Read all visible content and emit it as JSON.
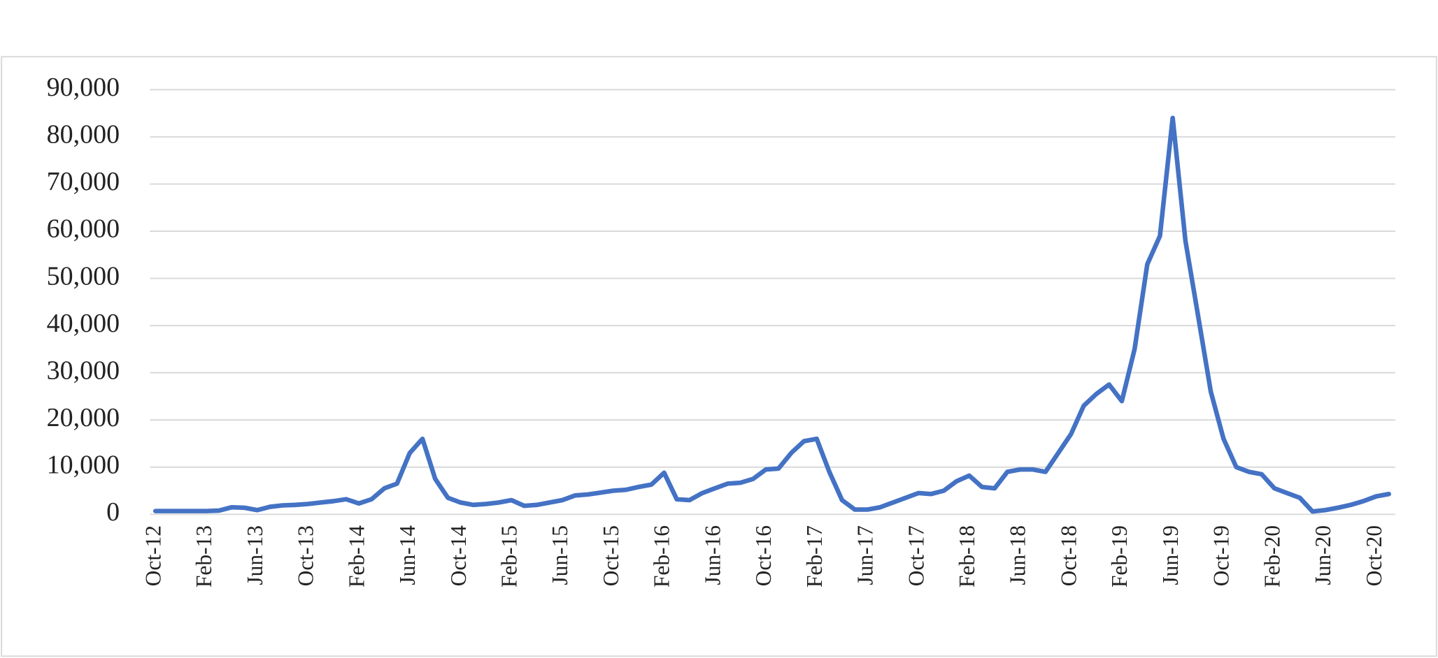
{
  "chart_data": {
    "type": "line",
    "categories": [
      "Oct-12",
      null,
      null,
      null,
      "Feb-13",
      null,
      null,
      null,
      "Jun-13",
      null,
      null,
      null,
      "Oct-13",
      null,
      null,
      null,
      "Feb-14",
      null,
      null,
      null,
      "Jun-14",
      null,
      null,
      null,
      "Oct-14",
      null,
      null,
      null,
      "Feb-15",
      null,
      null,
      null,
      "Jun-15",
      null,
      null,
      null,
      "Oct-15",
      null,
      null,
      null,
      "Feb-16",
      null,
      null,
      null,
      "Jun-16",
      null,
      null,
      null,
      "Oct-16",
      null,
      null,
      null,
      "Feb-17",
      null,
      null,
      null,
      "Jun-17",
      null,
      null,
      null,
      "Oct-17",
      null,
      null,
      null,
      "Feb-18",
      null,
      null,
      null,
      "Jun-18",
      null,
      null,
      null,
      "Oct-18",
      null,
      null,
      null,
      "Feb-19",
      null,
      null,
      null,
      "Jun-19",
      null,
      null,
      null,
      "Oct-19",
      null,
      null,
      null,
      "Feb-20",
      null,
      null,
      null,
      "Jun-20",
      null,
      null,
      null,
      "Oct-20",
      null
    ],
    "values": [
      700,
      700,
      700,
      700,
      700,
      800,
      1500,
      1400,
      900,
      1600,
      1900,
      2000,
      2200,
      2500,
      2800,
      3200,
      2300,
      3200,
      5500,
      6500,
      13000,
      16000,
      7500,
      3500,
      2500,
      2000,
      2200,
      2500,
      3000,
      1800,
      2000,
      2500,
      3000,
      4000,
      4200,
      4600,
      5000,
      5200,
      5800,
      6300,
      8800,
      3200,
      3000,
      4500,
      5500,
      6500,
      6700,
      7500,
      9500,
      9700,
      13000,
      15500,
      16000,
      9000,
      3000,
      1000,
      1000,
      1500,
      2500,
      3500,
      4500,
      4300,
      5000,
      7000,
      8200,
      5800,
      5500,
      9000,
      9500,
      9500,
      9000,
      13000,
      17000,
      23000,
      25500,
      27500,
      24000,
      35000,
      53000,
      59000,
      84000,
      58000,
      42000,
      26000,
      16000,
      10000,
      9000,
      8500,
      5500,
      4500,
      3500,
      600,
      900,
      1400,
      2000,
      2800,
      3800,
      4300
    ],
    "color": "#4472c4",
    "ylim": [
      0,
      90000
    ],
    "yticks": [
      0,
      {
        "value": 10000,
        "label": "10,000"
      },
      {
        "value": 20000,
        "label": "20,000"
      },
      {
        "value": 30000,
        "label": "30,000"
      },
      {
        "value": 40000,
        "label": "40,000"
      },
      {
        "value": 50000,
        "label": "50,000"
      },
      {
        "value": 60000,
        "label": "60,000"
      },
      {
        "value": 70000,
        "label": "70,000"
      },
      {
        "value": 80000,
        "label": "80,000"
      },
      {
        "value": 90000,
        "label": "90,000"
      }
    ],
    "grid": true
  }
}
